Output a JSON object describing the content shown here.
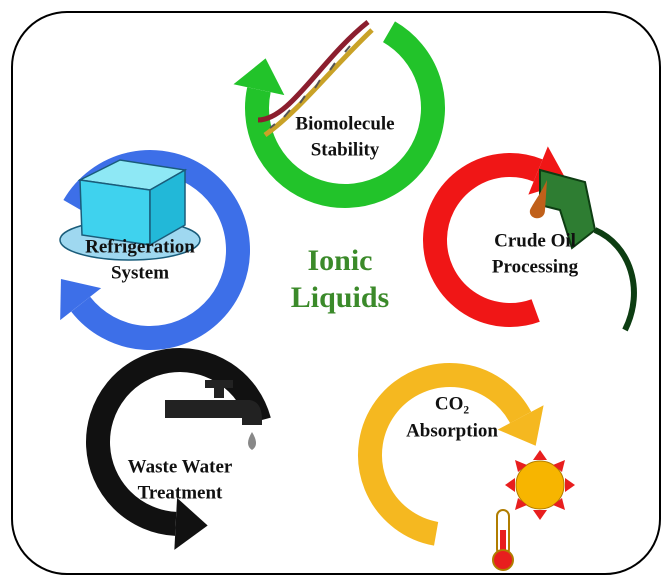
{
  "center": [
    "Ionic",
    "Liquids"
  ],
  "nodes": [
    {
      "lines": [
        "Biomolecule",
        "Stability"
      ]
    },
    {
      "lines": [
        "Crude Oil",
        "Processing"
      ]
    },
    {
      "lines": [
        "CO₂",
        "Absorption"
      ]
    },
    {
      "lines": [
        "Waste Water",
        "Treatment"
      ]
    },
    {
      "lines": [
        "Refrigeration",
        "System"
      ]
    }
  ]
}
